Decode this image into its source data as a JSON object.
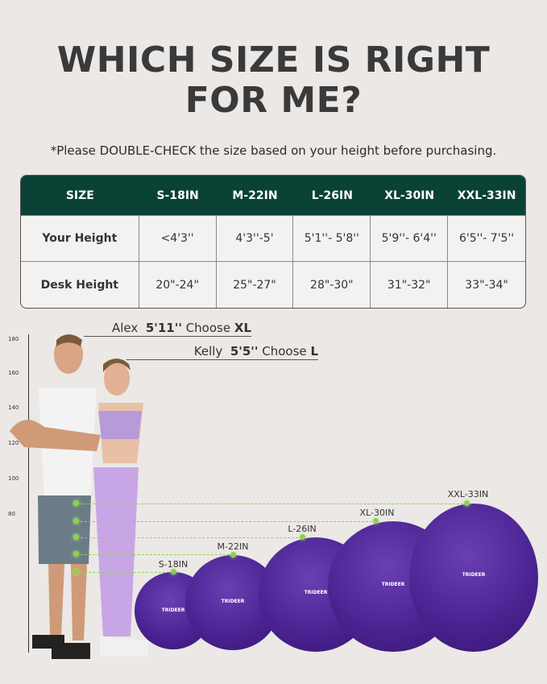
{
  "title": {
    "line1": "WHICH SIZE IS RIGHT",
    "line2": "FOR ME?"
  },
  "note": "*Please  DOUBLE-CHECK the size based on your height before purchasing.",
  "table": {
    "headers": [
      "SIZE",
      "S-18IN",
      "M-22IN",
      "L-26IN",
      "XL-30IN",
      "XXL-33IN"
    ],
    "rows": [
      {
        "label": "Your Height",
        "values": [
          "<4'3''",
          "4'3''-5'",
          "5'1''- 5'8''",
          "5'9''- 6'4''",
          "6'5''- 7'5''"
        ]
      },
      {
        "label": "Desk Height",
        "values": [
          "20\"-24\"",
          "25\"-27\"",
          "28\"-30\"",
          "31\"-32\"",
          "33\"-34\""
        ]
      }
    ],
    "header_color": "#0b4236"
  },
  "callouts": [
    {
      "name": "Alex",
      "height": "5'11''",
      "choose": "Choose",
      "size": "XL"
    },
    {
      "name": "Kelly",
      "height": "5'5''",
      "choose": "Choose",
      "size": "L"
    }
  ],
  "ruler_ticks": [
    "180",
    "160",
    "140",
    "120",
    "100",
    "80"
  ],
  "balls": [
    {
      "label": "S-18IN",
      "logo": "TRIDEER"
    },
    {
      "label": "M-22IN",
      "logo": "TRIDEER"
    },
    {
      "label": "L-26IN",
      "logo": "TRIDEER"
    },
    {
      "label": "XL-30IN",
      "logo": "TRIDEER"
    },
    {
      "label": "XXL-33IN",
      "logo": "TRIDEER"
    }
  ],
  "colors": {
    "ball": "#4a2290",
    "guide": "#8fd14f",
    "background": "#ebe8e6"
  }
}
